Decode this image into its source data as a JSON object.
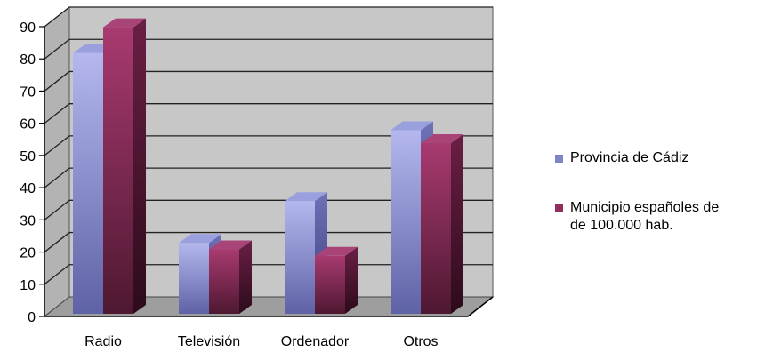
{
  "chart_data": {
    "type": "bar",
    "title": "",
    "xlabel": "",
    "ylabel": "",
    "categories": [
      "Radio",
      "Televisión",
      "Ordenador",
      "Otros"
    ],
    "ylim": [
      0,
      90
    ],
    "yticks": [
      0,
      10,
      20,
      30,
      40,
      50,
      60,
      70,
      80,
      90
    ],
    "grid": true,
    "legend_position": "right",
    "series": [
      {
        "name": "Provincia de Cádiz",
        "values": [
          81,
          22,
          35,
          57
        ],
        "color": "#8B8FD0"
      },
      {
        "name": "Municipio españoles de\nde 100.000 hab.",
        "values": [
          89,
          20,
          18,
          53
        ],
        "color": "#8E2F5C"
      }
    ]
  }
}
